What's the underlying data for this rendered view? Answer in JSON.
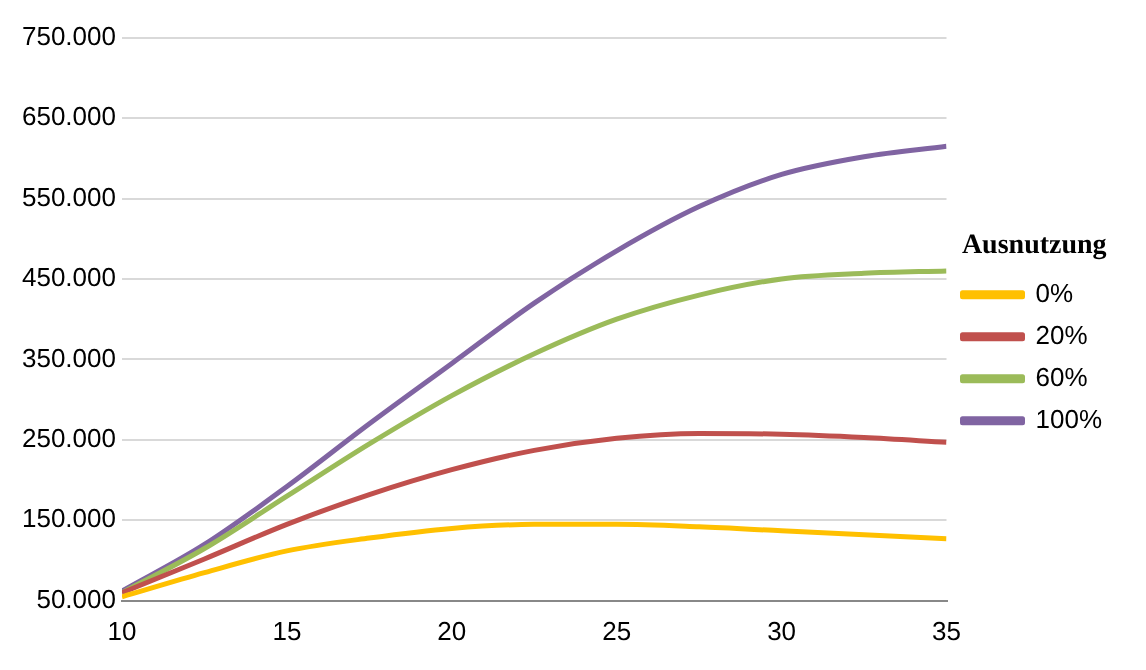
{
  "chart_data": {
    "type": "line",
    "legend_title": "Ausnutzung",
    "x": [
      10,
      12.5,
      15,
      17.5,
      20,
      22.5,
      25,
      27.5,
      30,
      32.5,
      35
    ],
    "series": [
      {
        "name": "0%",
        "color": "#ffc000",
        "values": [
          55000,
          85000,
          112000,
          128000,
          140000,
          145000,
          145000,
          142000,
          137000,
          132000,
          127000
        ]
      },
      {
        "name": "20%",
        "color": "#c0504d",
        "values": [
          60000,
          102000,
          145000,
          182000,
          213000,
          237000,
          252000,
          258000,
          257000,
          253000,
          247000
        ]
      },
      {
        "name": "60%",
        "color": "#9bbb59",
        "values": [
          60000,
          115000,
          180000,
          245000,
          305000,
          357000,
          400000,
          430000,
          450000,
          457000,
          460000
        ]
      },
      {
        "name": "100%",
        "color": "#8064a2",
        "values": [
          62000,
          120000,
          192000,
          270000,
          345000,
          420000,
          485000,
          540000,
          580000,
          602000,
          615000
        ]
      }
    ],
    "xlim": [
      10,
      35
    ],
    "xticks": [
      10,
      15,
      20,
      25,
      30,
      35
    ],
    "ylim": [
      50000,
      750000
    ],
    "yticks": [
      {
        "value": 50000,
        "label": "50.000"
      },
      {
        "value": 150000,
        "label": "150.000"
      },
      {
        "value": 250000,
        "label": "250.000"
      },
      {
        "value": 350000,
        "label": "350.000"
      },
      {
        "value": 450000,
        "label": "450.000"
      },
      {
        "value": 550000,
        "label": "550.000"
      },
      {
        "value": 650000,
        "label": "650.000"
      },
      {
        "value": 750000,
        "label": "750.000"
      }
    ],
    "grid": "y",
    "legend": "right",
    "marker": "none",
    "line_style": "solid"
  }
}
